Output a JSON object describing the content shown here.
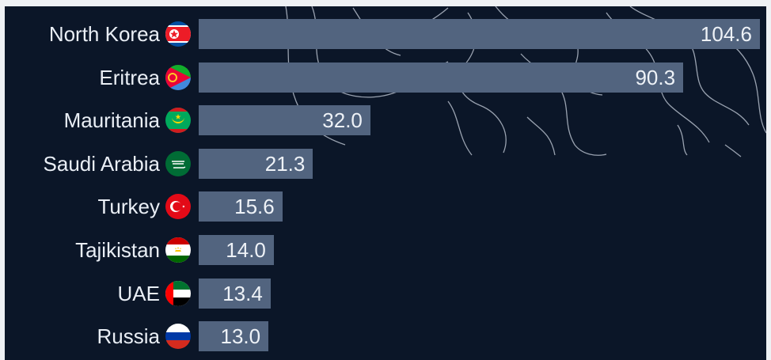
{
  "chart_data": {
    "type": "bar",
    "orientation": "horizontal",
    "categories": [
      "North Korea",
      "Eritrea",
      "Mauritania",
      "Saudi Arabia",
      "Turkey",
      "Tajikistan",
      "UAE",
      "Russia"
    ],
    "values": [
      104.6,
      90.3,
      32.0,
      21.3,
      15.6,
      14.0,
      13.4,
      13.0
    ],
    "value_labels": [
      "104.6",
      "90.3",
      "32.0",
      "21.3",
      "15.6",
      "14.0",
      "13.4",
      "13.0"
    ],
    "xlim": [
      0,
      104.6
    ],
    "grid": false,
    "legend": "none",
    "flags": [
      "north-korea-flag",
      "eritrea-flag",
      "mauritania-flag",
      "saudi-arabia-flag",
      "turkey-flag",
      "tajikistan-flag",
      "uae-flag",
      "russia-flag"
    ],
    "colors": {
      "background": "#0b1628",
      "bar": "#52647f",
      "text": "#e9eef5"
    }
  }
}
